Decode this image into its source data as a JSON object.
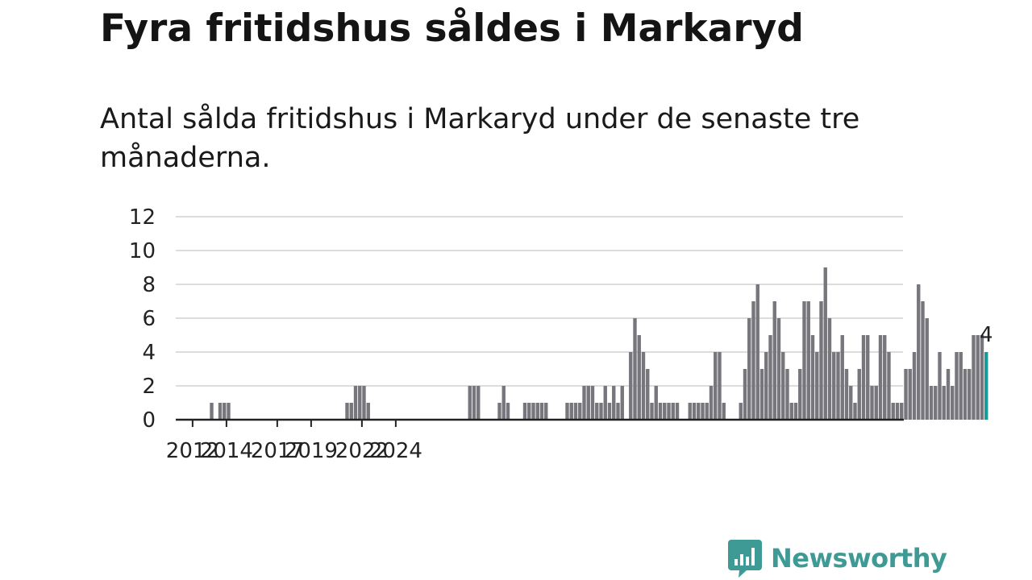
{
  "title": "Fyra fritidshus såldes i Markaryd",
  "subtitle": "Antal sålda fritidshus i Markaryd under de senaste tre månaderna.",
  "brand": {
    "name": "Newsworthy",
    "color": "#3d9a95",
    "icon": "newsworthy-chart-bubble-icon"
  },
  "chart_data": {
    "type": "bar",
    "x_start_quarter": 1,
    "x_start_year": 2011,
    "x_end_quarter": 3,
    "x_end_year": 2025,
    "ylim": [
      0,
      12
    ],
    "yticks": [
      0,
      2,
      4,
      6,
      8,
      10,
      12
    ],
    "xticks": [
      "2012",
      "2014",
      "2017",
      "2019",
      "2022",
      "2024"
    ],
    "grid": true,
    "values": [
      0,
      0,
      0,
      0,
      0,
      0,
      0,
      0,
      1,
      0,
      1,
      1,
      1,
      0,
      0,
      0,
      0,
      0,
      0,
      0,
      0,
      0,
      0,
      0,
      0,
      0,
      0,
      0,
      0,
      0,
      0,
      0,
      0,
      0,
      0,
      0,
      0,
      0,
      0,
      0,
      1,
      1,
      2,
      2,
      2,
      1,
      0,
      0,
      0,
      0,
      0,
      0,
      0,
      0,
      0,
      0,
      0,
      0,
      0,
      0,
      0,
      0,
      0,
      0,
      0,
      0,
      0,
      0,
      0,
      2,
      2,
      2,
      0,
      0,
      0,
      0,
      1,
      2,
      1,
      0,
      0,
      0,
      1,
      1,
      1,
      1,
      1,
      1,
      0,
      0,
      0,
      0,
      1,
      1,
      1,
      1,
      2,
      2,
      2,
      1,
      1,
      2,
      1,
      2,
      1,
      2,
      0,
      4,
      6,
      5,
      4,
      3,
      1,
      2,
      1,
      1,
      1,
      1,
      1,
      0,
      0,
      1,
      1,
      1,
      1,
      1,
      2,
      4,
      4,
      1,
      0,
      0,
      0,
      1,
      3,
      6,
      7,
      8,
      3,
      4,
      5,
      7,
      6,
      4,
      3,
      1,
      1,
      3,
      7,
      7,
      5,
      4,
      7,
      9,
      6,
      4,
      4,
      5,
      3,
      2,
      1,
      3,
      5,
      5,
      2,
      2,
      5,
      5,
      4,
      1,
      1,
      1,
      3,
      3,
      4,
      8,
      7,
      6,
      2,
      2,
      4,
      2,
      3,
      2,
      4,
      4,
      3,
      3,
      5,
      5,
      5,
      4
    ],
    "bar_color": "#77767d",
    "highlight_color": "#159c9a",
    "highlight_label": "4"
  }
}
